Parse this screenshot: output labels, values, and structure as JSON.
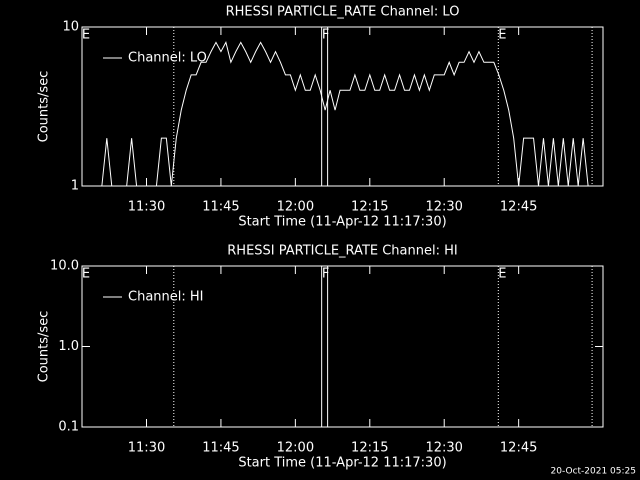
{
  "chart_data": [
    {
      "type": "line",
      "title": "RHESSI PARTICLE_RATE Channel: LO",
      "y_label": "Counts/sec",
      "x_label": "Start Time (11-Apr-12 11:17:30)",
      "log_y": true,
      "xlim": [
        677,
        782
      ],
      "ylim": [
        1,
        10
      ],
      "xticks": [
        {
          "value": 690,
          "label": "11:30"
        },
        {
          "value": 705,
          "label": "11:45"
        },
        {
          "value": 720,
          "label": "12:00"
        },
        {
          "value": 735,
          "label": "12:15"
        },
        {
          "value": 750,
          "label": "12:30"
        },
        {
          "value": 765,
          "label": "12:45"
        }
      ],
      "yticks": [
        1,
        10
      ],
      "legend": "top-left",
      "markers": [
        {
          "x": 677,
          "label": "E"
        },
        {
          "x": 695.5,
          "style": "dotted"
        },
        {
          "x": 725.3,
          "label": "F",
          "style": "solid"
        },
        {
          "x": 726.5,
          "style": "solid"
        },
        {
          "x": 760.9,
          "label": "E",
          "style": "dotted"
        },
        {
          "x": 779.8,
          "style": "dotted"
        }
      ],
      "x": [
        678,
        679,
        680,
        681,
        682,
        683,
        684,
        685,
        686,
        687,
        688,
        689,
        690,
        691,
        692,
        693,
        694,
        695,
        696,
        697,
        698,
        699,
        700,
        701,
        702,
        703,
        704,
        705,
        706,
        707,
        708,
        709,
        710,
        711,
        712,
        713,
        714,
        715,
        716,
        717,
        718,
        719,
        720,
        721,
        722,
        723,
        724,
        725,
        726,
        727,
        728,
        729,
        730,
        731,
        732,
        733,
        734,
        735,
        736,
        737,
        738,
        739,
        740,
        741,
        742,
        743,
        744,
        745,
        746,
        747,
        748,
        749,
        750,
        751,
        752,
        753,
        754,
        755,
        756,
        757,
        758,
        759,
        760,
        761,
        762,
        763,
        764,
        765,
        766,
        767,
        768,
        769,
        770,
        771,
        772,
        773,
        774,
        775,
        776,
        777,
        778,
        779
      ],
      "series": [
        {
          "name": "Channel: LO",
          "color": "#ffffff",
          "values": [
            1,
            1,
            1,
            1,
            2,
            1,
            1,
            1,
            1,
            2,
            1,
            1,
            1,
            1,
            1,
            2,
            2,
            1,
            2,
            3,
            4,
            5,
            5,
            6,
            6,
            7,
            8,
            7,
            8,
            6,
            7,
            8,
            7,
            6,
            7,
            8,
            7,
            6,
            7,
            6,
            5,
            5,
            4,
            5,
            4,
            4,
            5,
            4,
            3,
            4,
            3,
            4,
            4,
            4,
            5,
            4,
            4,
            5,
            4,
            4,
            5,
            4,
            4,
            5,
            4,
            4,
            5,
            4,
            5,
            4,
            5,
            5,
            5,
            6,
            5,
            6,
            6,
            7,
            6,
            7,
            6,
            6,
            6,
            5,
            4,
            3,
            2,
            1,
            2,
            2,
            2,
            1,
            2,
            1,
            2,
            1,
            2,
            1,
            2,
            1,
            2,
            1
          ]
        }
      ]
    },
    {
      "type": "line",
      "title": "RHESSI PARTICLE_RATE Channel: HI",
      "y_label": "Counts/sec",
      "x_label": "Start Time (11-Apr-12 11:17:30)",
      "log_y": true,
      "xlim": [
        677,
        782
      ],
      "ylim": [
        0.1,
        10
      ],
      "xticks": [
        {
          "value": 690,
          "label": "11:30"
        },
        {
          "value": 705,
          "label": "11:45"
        },
        {
          "value": 720,
          "label": "12:00"
        },
        {
          "value": 735,
          "label": "12:15"
        },
        {
          "value": 750,
          "label": "12:30"
        },
        {
          "value": 765,
          "label": "12:45"
        }
      ],
      "yticks": [
        0.1,
        {
          "value": 1,
          "label": "1.0"
        },
        {
          "value": 10,
          "label": "10.0"
        }
      ],
      "legend": "top-left",
      "markers": [
        {
          "x": 677,
          "label": "E"
        },
        {
          "x": 695.5,
          "style": "dotted"
        },
        {
          "x": 725.3,
          "label": "F",
          "style": "solid"
        },
        {
          "x": 726.5,
          "style": "solid"
        },
        {
          "x": 760.9,
          "label": "E",
          "style": "dotted"
        },
        {
          "x": 779.8,
          "style": "dotted"
        }
      ],
      "x": [],
      "series": [
        {
          "name": "Channel: HI",
          "color": "#ffffff",
          "values": []
        }
      ]
    }
  ],
  "footer": "20-Oct-2021 05:25"
}
